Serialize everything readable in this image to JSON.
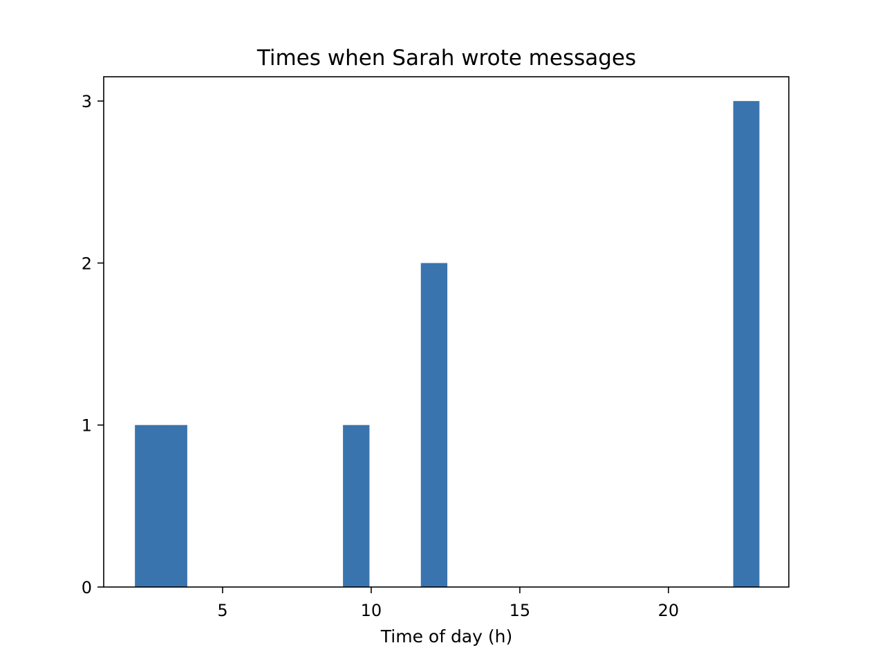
{
  "chart_data": {
    "type": "bar",
    "title": "Times when Sarah wrote messages",
    "xlabel": "Time of day (h)",
    "ylabel": "",
    "xlim": [
      1.0,
      24.05
    ],
    "ylim": [
      0,
      3.15
    ],
    "x_ticks": [
      5,
      10,
      15,
      20
    ],
    "y_ticks": [
      0,
      1,
      2,
      3
    ],
    "bar_color": "#3a74ae",
    "bins": [
      {
        "start": 2.05,
        "end": 2.93,
        "value": 1
      },
      {
        "start": 2.93,
        "end": 3.8,
        "value": 1
      },
      {
        "start": 9.05,
        "end": 9.93,
        "value": 1
      },
      {
        "start": 11.67,
        "end": 12.55,
        "value": 2
      },
      {
        "start": 22.18,
        "end": 23.05,
        "value": 3
      }
    ],
    "grid": false,
    "legend": "none"
  }
}
